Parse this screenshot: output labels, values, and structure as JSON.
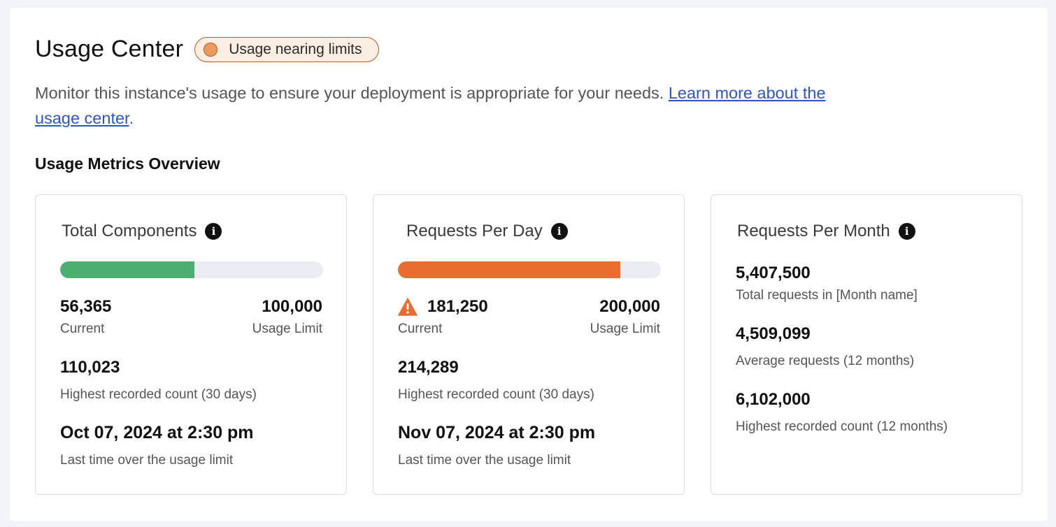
{
  "header": {
    "title": "Usage Center",
    "badge": "Usage nearing limits",
    "badge_color": "#ee9a5e"
  },
  "description": {
    "text": " Monitor this instance's usage to ensure your deployment is appropriate for your needs. ",
    "link": "Learn more about the usage center",
    "suffix": "."
  },
  "section_title": "Usage Metrics Overview",
  "cards": [
    {
      "title": "Total Components",
      "info_icon": "info-icon",
      "progress": 0.51,
      "bar_color": "#4caf71",
      "current": "56,365",
      "current_label": "Current",
      "limit": "100,000",
      "limit_label": "Usage Limit",
      "highest": "110,023",
      "highest_label": "Highest recorded count (30 days)",
      "last_over": "Oct 07, 2024 at 2:30 pm",
      "last_over_label": "Last time over the usage limit"
    },
    {
      "title": "Requests Per Day",
      "info_icon": "info-icon",
      "progress": 0.845,
      "bar_color": "#e96d2e",
      "warning_icon": "warning-icon",
      "current": "181,250",
      "current_label": "Current",
      "limit": "200,000",
      "limit_label": "Usage Limit",
      "highest": "214,289",
      "highest_label": "Highest recorded count (30 days)",
      "last_over": "Nov 07, 2024 at 2:30 pm",
      "last_over_label": "Last time over the usage limit"
    },
    {
      "title": "Requests Per Month",
      "info_icon": "info-icon",
      "total": "5,407,500",
      "total_label": "Total requests in [Month name]",
      "average": "4,509,099",
      "average_label": "Average requests (12 months)",
      "highest": "6,102,000",
      "highest_label": "Highest recorded count (12 months)"
    }
  ]
}
